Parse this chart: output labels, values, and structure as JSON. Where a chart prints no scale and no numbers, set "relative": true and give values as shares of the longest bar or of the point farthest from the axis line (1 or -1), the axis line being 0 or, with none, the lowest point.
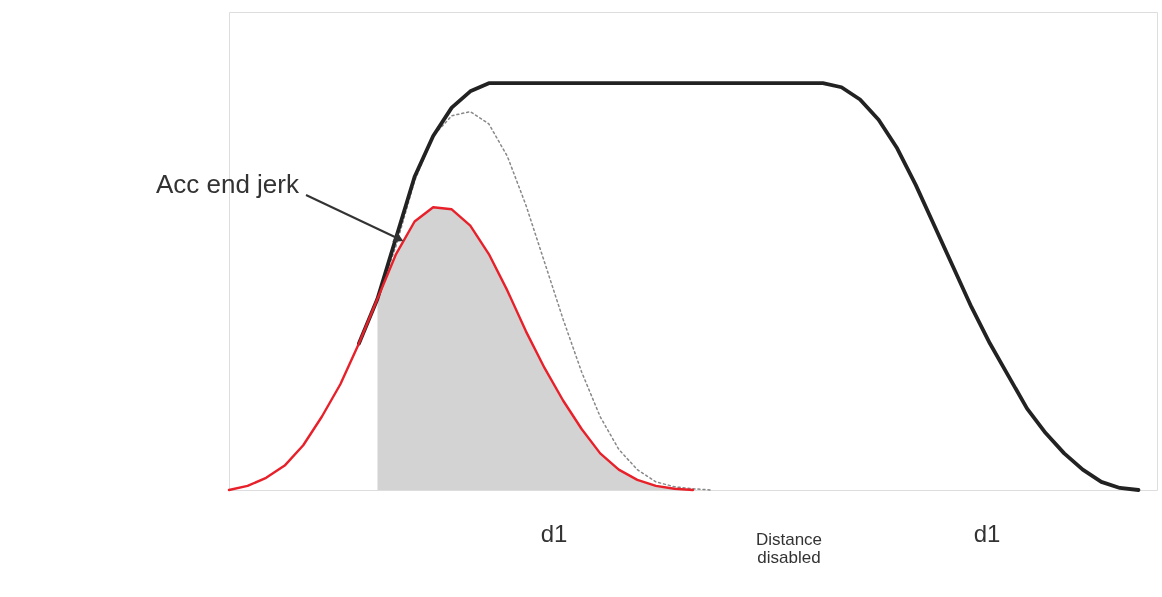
{
  "chart_data": {
    "type": "line",
    "relative": true,
    "categories": [
      null,
      null,
      null,
      null,
      null,
      null,
      null,
      null,
      null,
      null,
      null,
      null,
      null,
      null,
      null,
      null,
      null,
      null,
      null,
      null,
      null,
      null,
      null,
      null,
      null,
      null,
      null,
      null,
      null,
      null,
      null,
      null,
      null,
      null,
      null,
      null,
      null,
      null,
      null,
      null,
      null,
      null,
      null,
      null,
      null,
      null,
      null,
      null,
      null,
      null,
      null
    ],
    "series": [
      {
        "line_style": "dotted",
        "color": "#888888",
        "values": [
          null,
          null,
          null,
          null,
          null,
          null,
          null,
          null,
          0.47,
          0.6,
          0.76,
          0.87,
          0.92,
          0.93,
          0.9,
          0.82,
          0.7,
          0.56,
          0.42,
          0.29,
          0.18,
          0.1,
          0.05,
          0.02,
          0.008,
          0.003,
          0,
          null,
          null,
          null,
          null,
          null,
          null,
          null,
          null,
          null,
          null,
          null,
          null,
          null,
          null,
          null,
          null,
          null,
          null,
          null,
          null,
          null,
          null,
          null,
          null
        ]
      },
      {
        "line_style": "solid",
        "color": "#222222",
        "values": [
          null,
          null,
          null,
          null,
          null,
          null,
          null,
          0.36,
          0.47,
          0.62,
          0.77,
          0.87,
          0.94,
          0.98,
          1,
          1,
          1,
          1,
          1,
          1,
          1,
          1,
          1,
          1,
          1,
          1,
          1,
          1,
          1,
          1,
          1,
          1,
          1,
          0.99,
          0.96,
          0.91,
          0.84,
          0.75,
          0.65,
          0.55,
          0.45,
          0.36,
          0.28,
          0.2,
          0.14,
          0.09,
          0.05,
          0.02,
          0.005,
          0,
          null
        ]
      },
      {
        "line_style": "solid",
        "color": "#e8202a",
        "values": [
          0,
          0.01,
          0.03,
          0.06,
          0.11,
          0.18,
          0.26,
          0.36,
          0.47,
          0.58,
          0.66,
          0.695,
          0.69,
          0.65,
          0.58,
          0.49,
          0.39,
          0.3,
          0.22,
          0.15,
          0.09,
          0.05,
          0.025,
          0.01,
          0.003,
          0,
          null,
          null,
          null,
          null,
          null,
          null,
          null,
          null,
          null,
          null,
          null,
          null,
          null,
          null,
          null,
          null,
          null,
          null,
          null,
          null,
          null,
          null,
          null,
          null,
          null
        ],
        "lower": [
          null,
          null,
          null,
          null,
          null,
          null,
          null,
          null,
          0,
          0,
          0,
          0,
          0,
          0,
          0,
          0,
          0,
          0,
          0,
          0,
          0,
          0,
          0,
          0,
          0,
          0,
          null,
          null,
          null,
          null,
          null,
          null,
          null,
          null,
          null,
          null,
          null,
          null,
          null,
          null,
          null,
          null,
          null,
          null,
          null,
          null,
          null,
          null,
          null,
          null,
          null
        ],
        "upper": [
          null,
          null,
          null,
          null,
          null,
          null,
          null,
          null,
          0.47,
          0.58,
          0.66,
          0.695,
          0.69,
          0.65,
          0.58,
          0.49,
          0.39,
          0.3,
          0.22,
          0.15,
          0.09,
          0.05,
          0.025,
          0.01,
          0.003,
          0,
          null,
          null,
          null,
          null,
          null,
          null,
          null,
          null,
          null,
          null,
          null,
          null,
          null,
          null,
          null,
          null,
          null,
          null,
          null,
          null,
          null,
          null,
          null,
          null,
          null
        ]
      }
    ],
    "annotations": [
      "Acc end jerk",
      "d1",
      "Distance disabled",
      "d1"
    ]
  }
}
